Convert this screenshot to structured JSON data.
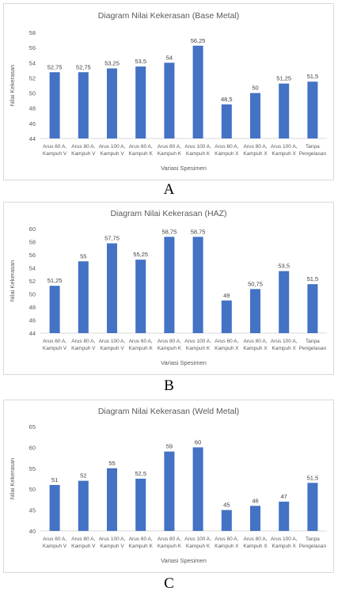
{
  "captions": [
    "A",
    "B",
    "C"
  ],
  "bar_color": "#4472c4",
  "chart_data": [
    {
      "type": "bar",
      "title": "Diagram Nilai Kekerasan (Base Metal)",
      "xlabel": "Variasi Spesimen",
      "ylabel": "Nilai Kekerasan",
      "categories": [
        [
          "Arus 60 A,",
          "Kampuh V"
        ],
        [
          "Arus 80 A,",
          "Kampuh V"
        ],
        [
          "Arus 100 A,",
          "Kampuh V"
        ],
        [
          "Arus 60 A,",
          "Kampuh K"
        ],
        [
          "Arus 80 A,",
          "Kampuh K"
        ],
        [
          "Arus 100 A,",
          "Kampuh K"
        ],
        [
          "Arus 60 A,",
          "Kampuh X"
        ],
        [
          "Arus 80 A,",
          "Kampuh X"
        ],
        [
          "Arus 100 A,",
          "Kampuh X"
        ],
        [
          "Tanpa",
          "Pengelasan"
        ]
      ],
      "values": [
        52.75,
        52.75,
        53.25,
        53.5,
        54,
        56.25,
        48.5,
        50,
        51.25,
        51.5
      ],
      "value_labels": [
        "52,75",
        "52,75",
        "53,25",
        "53,5",
        "54",
        "56,25",
        "48,5",
        "50",
        "51,25",
        "51,5"
      ],
      "ylim": [
        44,
        58
      ],
      "yticks": [
        44,
        46,
        48,
        50,
        52,
        54,
        56,
        58
      ],
      "grid": false,
      "legend": "none"
    },
    {
      "type": "bar",
      "title": "Diagram Nilai Kekerasan (HAZ)",
      "xlabel": "Variasi Spesimen",
      "ylabel": "Nilai Kekerasan",
      "categories": [
        [
          "Arus 60 A,",
          "Kampuh V"
        ],
        [
          "Arus 80 A,",
          "Kampuh V"
        ],
        [
          "Arus 100 A,",
          "Kampuh V"
        ],
        [
          "Arus 60 A,",
          "Kampuh K"
        ],
        [
          "Arus 80 A,",
          "Kampuh K"
        ],
        [
          "Arus 100 A,",
          "Kampuh K"
        ],
        [
          "Arus 60 A,",
          "Kampuh X"
        ],
        [
          "Arus 80 A,",
          "Kampuh X"
        ],
        [
          "Arus 100 A,",
          "Kampuh X"
        ],
        [
          "Tanpa",
          "Pengelasan"
        ]
      ],
      "values": [
        51.25,
        55,
        57.75,
        55.25,
        58.75,
        58.75,
        49,
        50.75,
        53.5,
        51.5
      ],
      "value_labels": [
        "51,25",
        "55",
        "57,75",
        "55,25",
        "58,75",
        "58,75",
        "49",
        "50,75",
        "53,5",
        "51,5"
      ],
      "ylim": [
        44,
        60
      ],
      "yticks": [
        44,
        46,
        48,
        50,
        52,
        54,
        56,
        58,
        60
      ],
      "grid": false,
      "legend": "none"
    },
    {
      "type": "bar",
      "title": "Diagram Nilai Kekerasan (Weld Metal)",
      "xlabel": "Variasi Spesimen",
      "ylabel": "Nilai Kekerasan",
      "categories": [
        [
          "Arus 60 A,",
          "Kampuh V"
        ],
        [
          "Arus 80 A,",
          "Kampuh V"
        ],
        [
          "Arus 100 A,",
          "Kampuh V"
        ],
        [
          "Arus 60 A,",
          "Kampuh K"
        ],
        [
          "Arus 80 A,",
          "Kampuh K"
        ],
        [
          "Arus 100 A,",
          "Kampuh K"
        ],
        [
          "Arus 60 A,",
          "Kampuh X"
        ],
        [
          "Arus 80 A,",
          "Kampuh X"
        ],
        [
          "Arus 100 A,",
          "Kampuh X"
        ],
        [
          "Tanpa",
          "Pengelasan"
        ]
      ],
      "values": [
        51,
        52,
        55,
        52.5,
        59,
        60,
        45,
        46,
        47,
        51.5
      ],
      "value_labels": [
        "51",
        "52",
        "55",
        "52,5",
        "59",
        "60",
        "45",
        "46",
        "47",
        "51,5"
      ],
      "ylim": [
        40,
        65
      ],
      "yticks": [
        40,
        45,
        50,
        55,
        60,
        65
      ],
      "grid": false,
      "legend": "none"
    }
  ]
}
